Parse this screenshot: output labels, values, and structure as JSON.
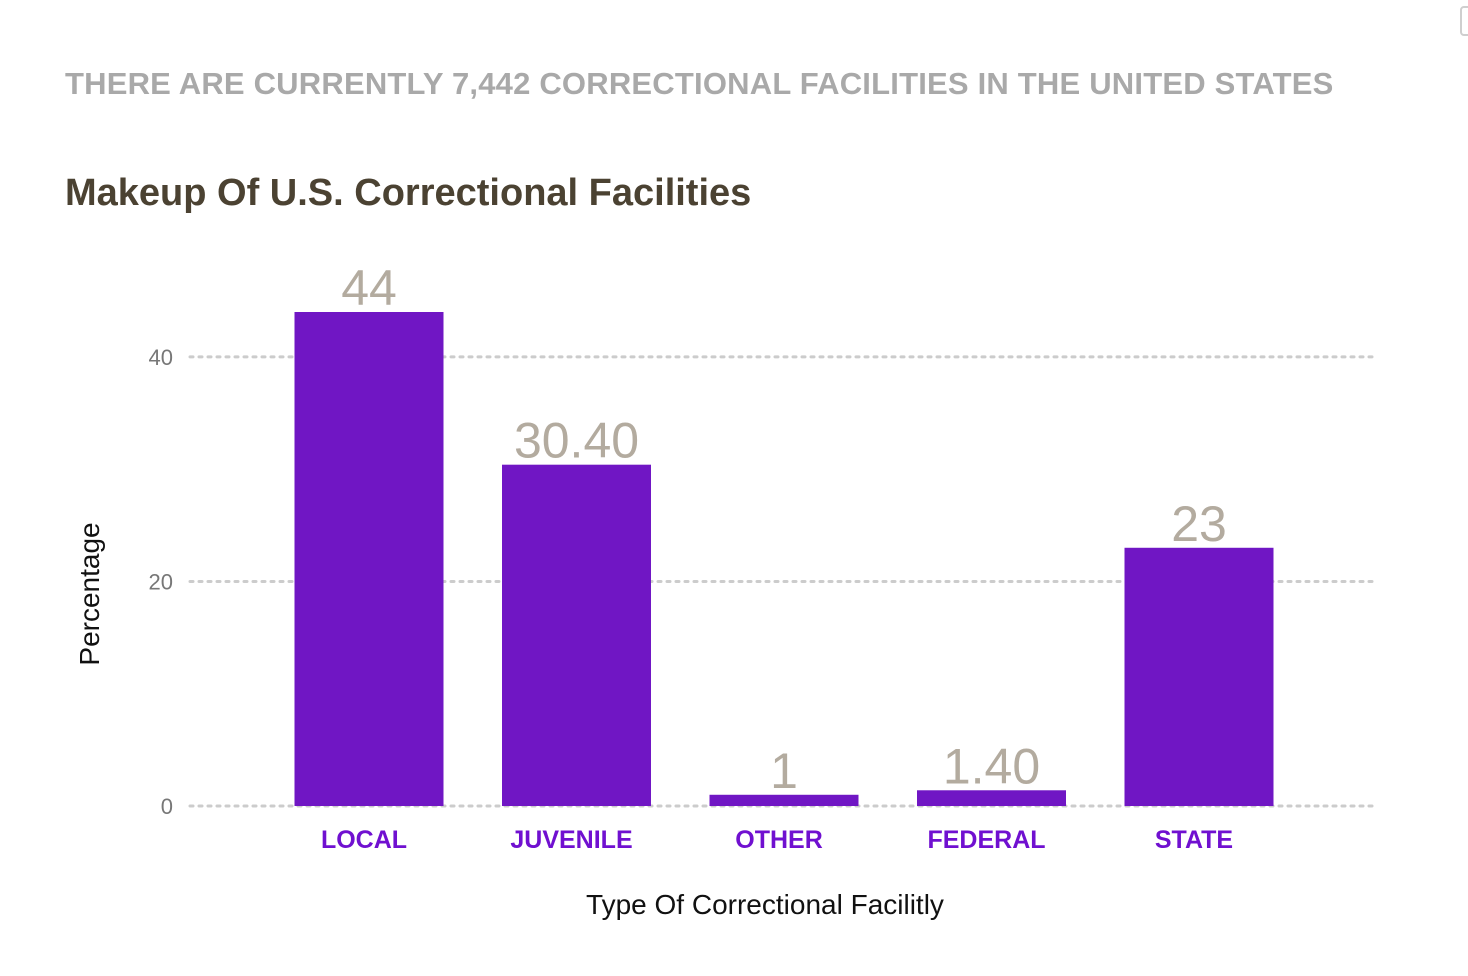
{
  "header": {
    "headline": "THERE ARE CURRENTLY 7,442 CORRECTIONAL FACILITIES IN THE UNITED STATES"
  },
  "chart_data": {
    "type": "bar",
    "title": "Makeup Of U.S. Correctional Facilities",
    "categories": [
      "LOCAL",
      "JUVENILE",
      "OTHER",
      "FEDERAL",
      "STATE"
    ],
    "values": [
      44,
      30.4,
      1,
      1.4,
      23
    ],
    "value_labels": [
      "44",
      "30.40",
      "1",
      "1.40",
      "23"
    ],
    "xlabel": "Type Of Correctional Facilitly",
    "ylabel": "Percentage",
    "ylim": [
      0,
      44
    ],
    "yticks": [
      0,
      20,
      40
    ],
    "grid": true,
    "grid_style": "dotted",
    "colors": {
      "bar": "#7016c4",
      "category_label": "#7010d0",
      "value_label": "#b3ab9f",
      "grid": "#cccccc"
    }
  }
}
